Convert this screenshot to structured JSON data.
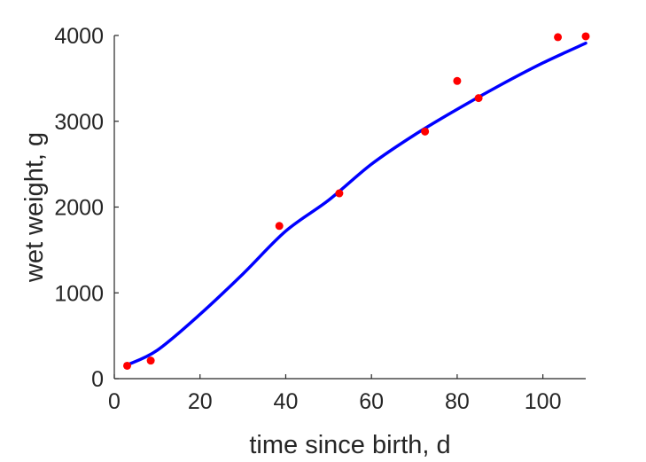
{
  "chart_data": {
    "type": "scatter",
    "title": "",
    "xlabel": "time since birth, d",
    "ylabel": "wet weight, g",
    "xlim": [
      0,
      110
    ],
    "ylim": [
      0,
      4000
    ],
    "x_ticks": [
      0,
      20,
      40,
      60,
      80,
      100
    ],
    "y_ticks": [
      0,
      1000,
      2000,
      3000,
      4000
    ],
    "grid": false,
    "box": false,
    "series": [
      {
        "type": "scatter",
        "color": "#ff0000",
        "points": [
          {
            "x": 3,
            "y": 150
          },
          {
            "x": 8.5,
            "y": 210
          },
          {
            "x": 38.5,
            "y": 1780
          },
          {
            "x": 52.5,
            "y": 2160
          },
          {
            "x": 72.5,
            "y": 2880
          },
          {
            "x": 80,
            "y": 3470
          },
          {
            "x": 85,
            "y": 3270
          },
          {
            "x": 103.5,
            "y": 3980
          },
          {
            "x": 110,
            "y": 3990
          }
        ]
      },
      {
        "type": "line",
        "color": "#0000ff",
        "points": [
          {
            "x": 3,
            "y": 160
          },
          {
            "x": 10,
            "y": 330
          },
          {
            "x": 20,
            "y": 750
          },
          {
            "x": 30,
            "y": 1220
          },
          {
            "x": 40,
            "y": 1720
          },
          {
            "x": 50,
            "y": 2080
          },
          {
            "x": 60,
            "y": 2500
          },
          {
            "x": 70,
            "y": 2840
          },
          {
            "x": 80,
            "y": 3140
          },
          {
            "x": 90,
            "y": 3420
          },
          {
            "x": 100,
            "y": 3680
          },
          {
            "x": 110,
            "y": 3910
          }
        ]
      }
    ]
  }
}
